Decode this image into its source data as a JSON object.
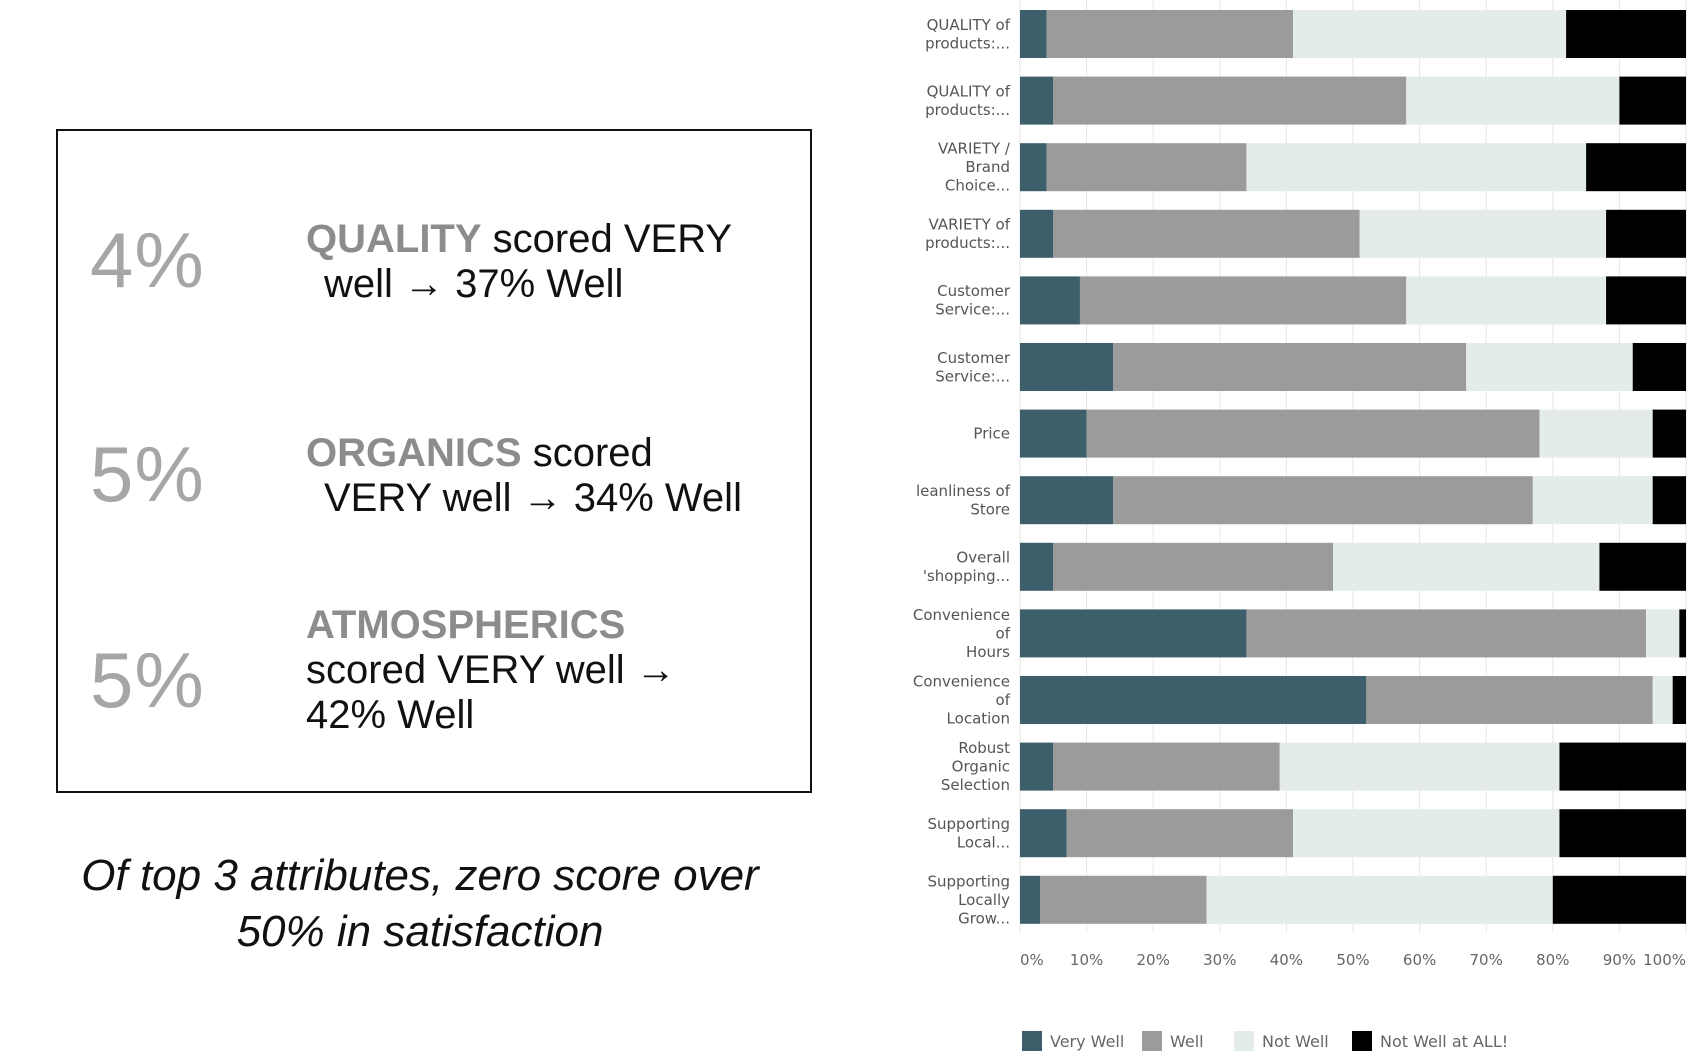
{
  "summary": {
    "items": [
      {
        "pct": "4%",
        "attr": "QUALITY",
        "rest1": " scored VERY",
        "line2": "well → 37% Well"
      },
      {
        "pct": "5%",
        "attr": "ORGANICS",
        "rest1": " scored",
        "line2": "VERY well → 34% Well"
      },
      {
        "pct": "5%",
        "attr": "ATMOSPHERICS",
        "rest1": "",
        "line2": "scored VERY well →",
        "line3": "42% Well"
      }
    ],
    "conclusion_line1": "Of top 3 attributes, zero score over",
    "conclusion_line2": "50% in satisfaction"
  },
  "colors": {
    "very_well": "#3d5e6b",
    "well": "#9b9b9b",
    "not_well": "#e3eceb",
    "not_well_at_all": "#000000",
    "grid": "#e6e6e6"
  },
  "chart_data": {
    "type": "bar",
    "orientation": "horizontal",
    "stacked": true,
    "percent": true,
    "categories": [
      [
        "QUALITY of",
        "products:..."
      ],
      [
        "QUALITY of",
        "products:..."
      ],
      [
        "VARIETY /",
        "Brand",
        "Choice..."
      ],
      [
        "VARIETY of",
        "products:..."
      ],
      [
        "Customer",
        "Service:..."
      ],
      [
        "Customer",
        "Service:..."
      ],
      [
        "Price"
      ],
      [
        "leanliness of",
        "Store"
      ],
      [
        "Overall",
        "'shopping..."
      ],
      [
        "Convenience",
        "of",
        "Hours"
      ],
      [
        "Convenience",
        "of",
        "Location"
      ],
      [
        "Robust",
        "Organic",
        "Selection"
      ],
      [
        "Supporting",
        "Local..."
      ],
      [
        "Supporting",
        "Locally",
        "Grow..."
      ]
    ],
    "series": [
      {
        "name": "Very Well",
        "values": [
          4,
          5,
          4,
          5,
          9,
          14,
          10,
          14,
          5,
          34,
          52,
          5,
          7,
          3
        ]
      },
      {
        "name": "Well",
        "values": [
          37,
          53,
          30,
          46,
          49,
          53,
          68,
          63,
          42,
          60,
          43,
          34,
          34,
          25
        ]
      },
      {
        "name": "Not Well",
        "values": [
          41,
          32,
          51,
          37,
          30,
          25,
          17,
          18,
          40,
          5,
          3,
          42,
          40,
          52
        ]
      },
      {
        "name": "Not Well at ALL!",
        "values": [
          18,
          10,
          15,
          12,
          12,
          8,
          5,
          5,
          13,
          1,
          2,
          19,
          19,
          20
        ]
      }
    ],
    "xaxis": {
      "ticks": [
        "0%",
        "10%",
        "20%",
        "30%",
        "40%",
        "50%",
        "60%",
        "70%",
        "80%",
        "90%",
        "100%"
      ],
      "range": [
        0,
        100
      ]
    },
    "legend": {
      "placement": "bottom"
    },
    "grid": true
  }
}
